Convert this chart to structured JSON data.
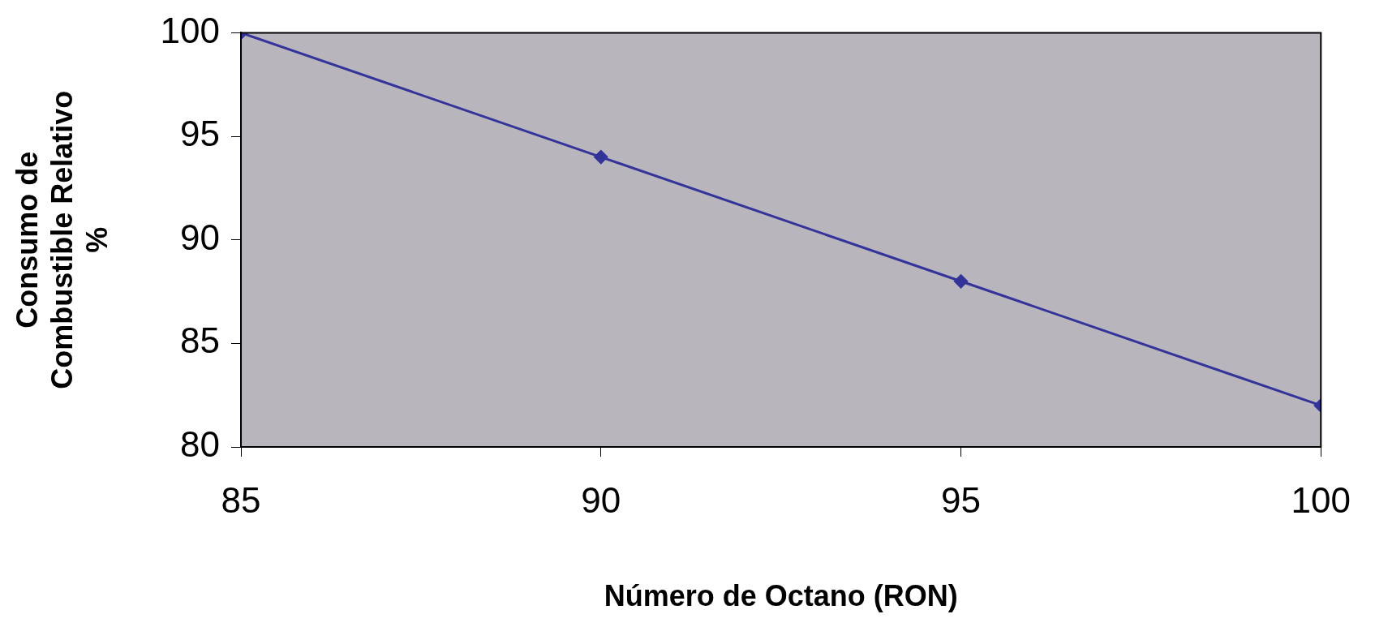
{
  "chart_data": {
    "type": "line",
    "xlabel": "Número de Octano (RON)",
    "ylabel": "Consumo de\nCombustible Relativo\n%",
    "x": [
      85,
      90,
      95,
      100
    ],
    "series": [
      {
        "color": "#333399",
        "values": [
          100,
          94,
          88,
          82
        ]
      }
    ],
    "xlim": [
      85,
      100
    ],
    "xticks": [
      85,
      90,
      95,
      100
    ],
    "ylim": [
      80,
      100
    ],
    "yticks": [
      80,
      85,
      90,
      95,
      100
    ],
    "grid": false,
    "legend": false,
    "marker": "diamond",
    "line_style": "solid"
  }
}
